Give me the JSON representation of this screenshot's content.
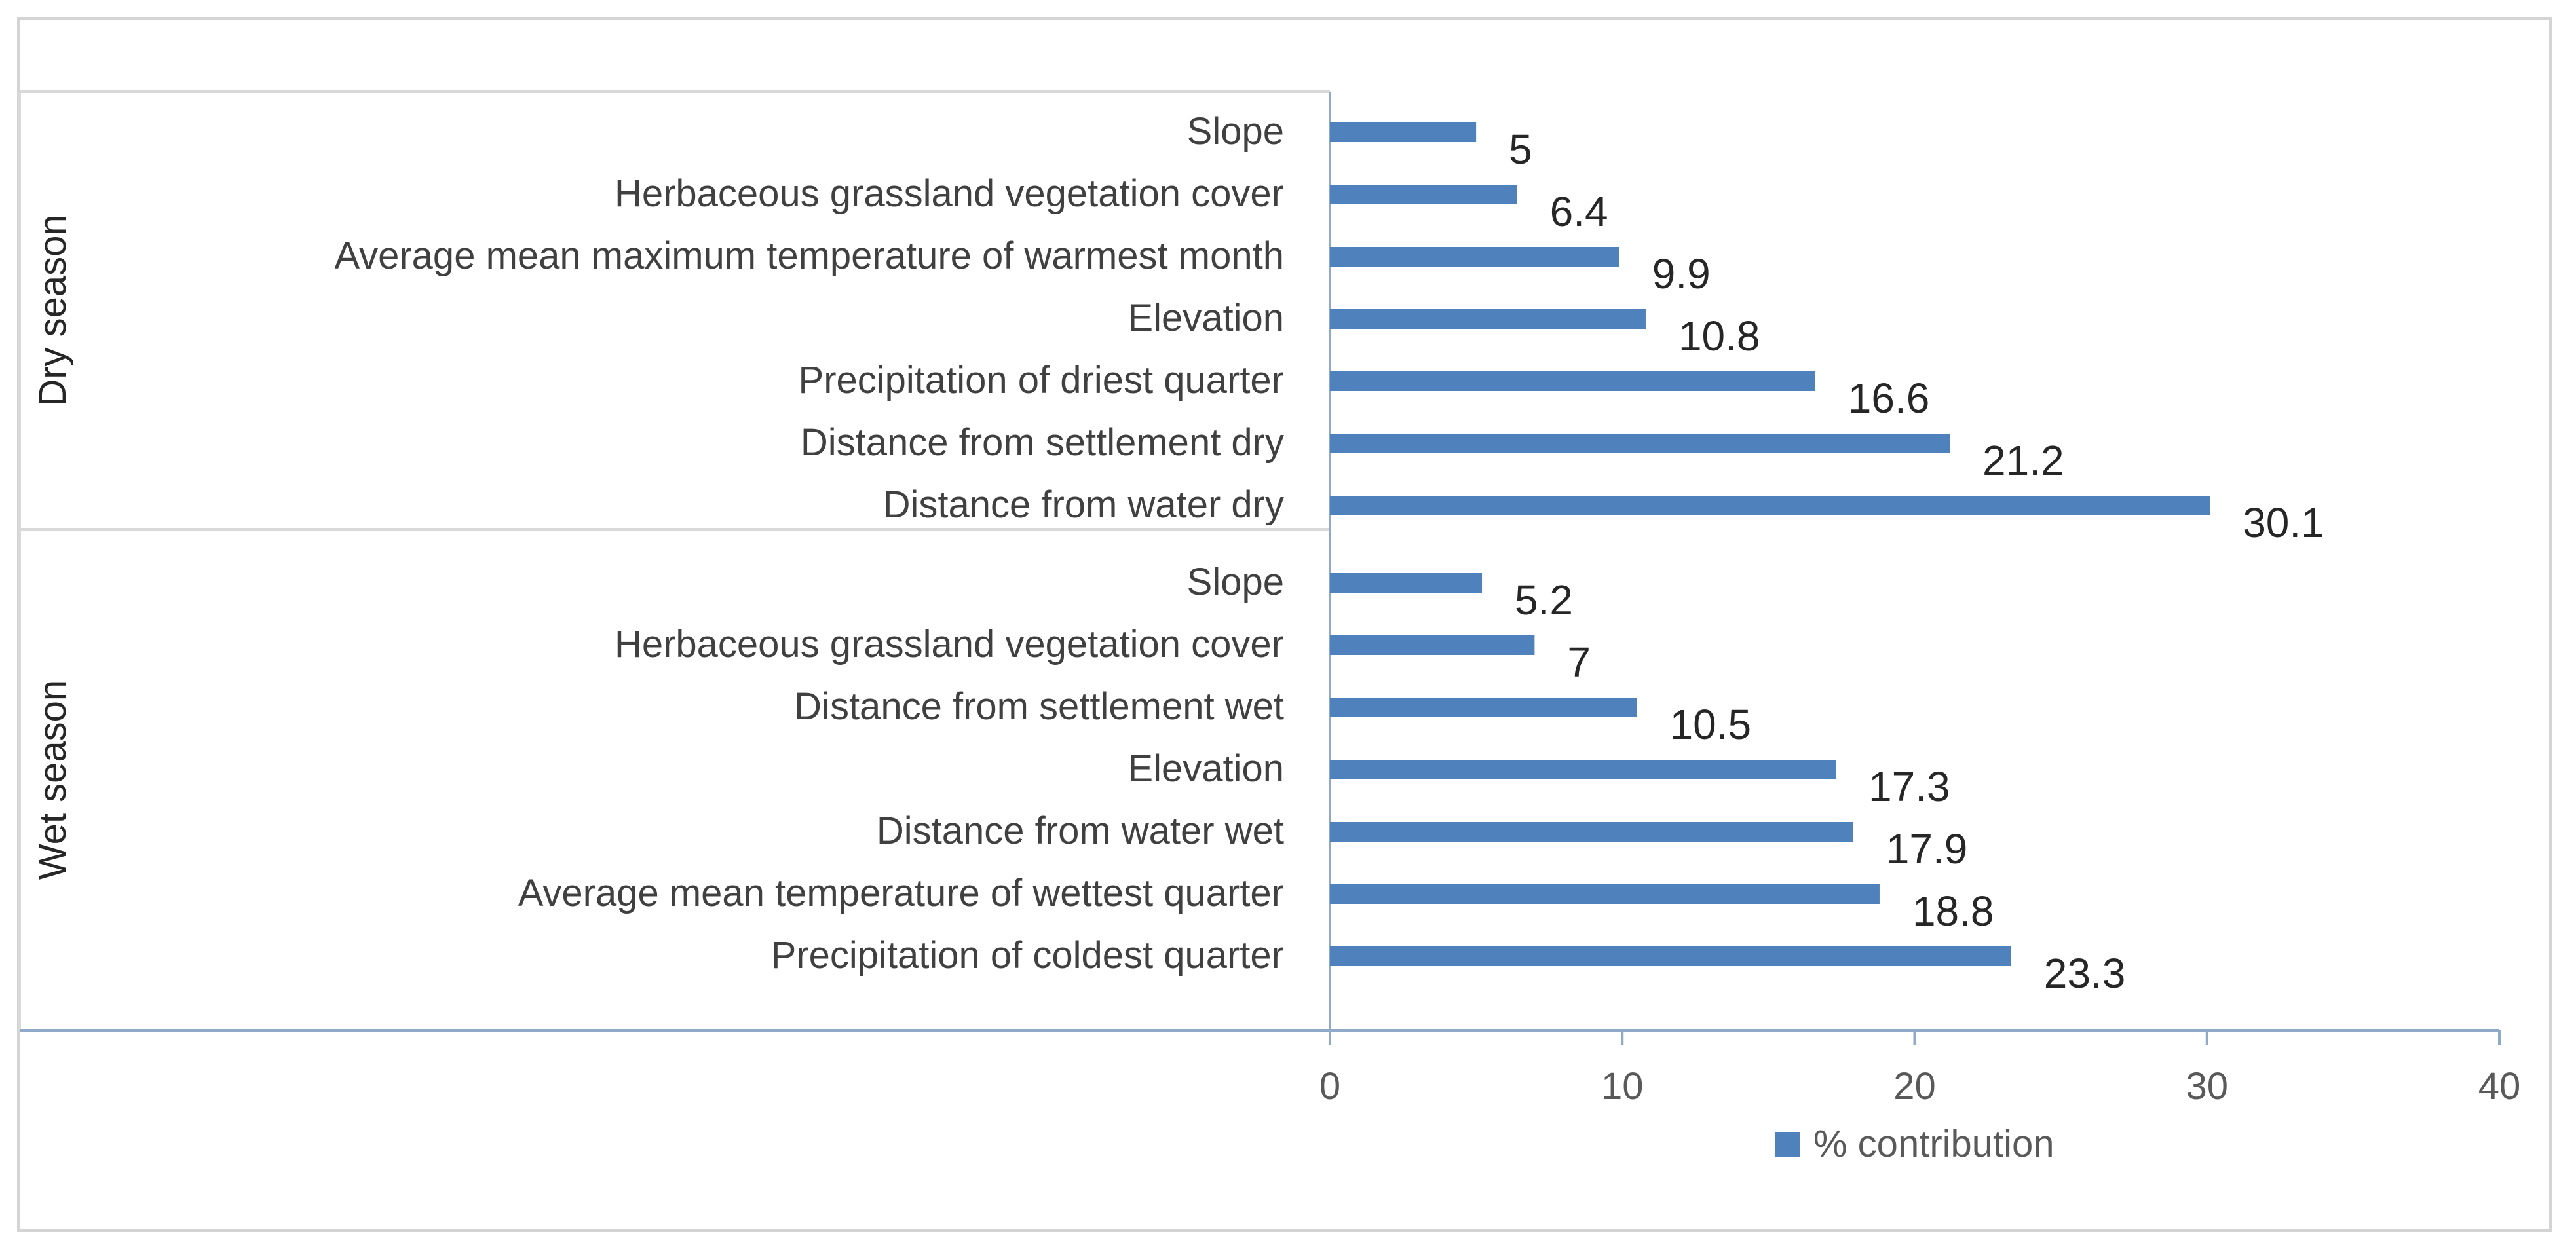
{
  "chart_data": {
    "type": "bar",
    "orientation": "horizontal",
    "xlim": [
      0,
      40
    ],
    "xticks": [
      0,
      10,
      20,
      30,
      40
    ],
    "legend": {
      "label": "% contribution",
      "placement": "bottom",
      "color": "#4f81bd"
    },
    "bar_color": "#4f81bd",
    "groups": [
      {
        "name": "Dry season",
        "categories": [
          "Slope",
          "Herbaceous grassland vegetation cover",
          "Average mean maximum temperature of warmest month",
          "Elevation",
          "Precipitation of driest quarter",
          "Distance from settlement dry",
          "Distance from water dry"
        ],
        "values": [
          5,
          6.4,
          9.9,
          10.8,
          16.6,
          21.2,
          30.1
        ],
        "value_labels": [
          "5",
          "6.4",
          "9.9",
          "10.8",
          "16.6",
          "21.2",
          "30.1"
        ]
      },
      {
        "name": "Wet season",
        "categories": [
          "Slope",
          "Herbaceous grassland vegetation cover",
          "Distance from settlement wet",
          "Elevation",
          "Distance from water wet",
          "Average mean temperature of wettest quarter",
          "Precipitation of coldest quarter"
        ],
        "values": [
          5.2,
          7,
          10.5,
          17.3,
          17.9,
          18.8,
          23.3
        ],
        "value_labels": [
          "5.2",
          "7",
          "10.5",
          "17.3",
          "17.9",
          "18.8",
          "23.3"
        ]
      }
    ]
  }
}
